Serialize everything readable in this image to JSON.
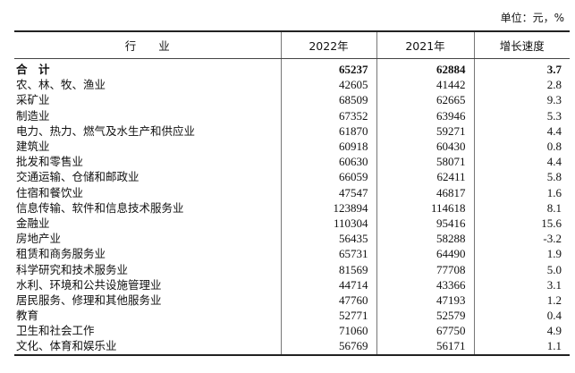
{
  "unit": "单位：元，%",
  "headers": [
    "行　　业",
    "2022年",
    "2021年",
    "增长速度"
  ],
  "rows": [
    [
      "合　计",
      "65237",
      "62884",
      "3.7"
    ],
    [
      "农、林、牧、渔业",
      "42605",
      "41442",
      "2.8"
    ],
    [
      "采矿业",
      "68509",
      "62665",
      "9.3"
    ],
    [
      "制造业",
      "67352",
      "63946",
      "5.3"
    ],
    [
      "电力、热力、燃气及水生产和供应业",
      "61870",
      "59271",
      "4.4"
    ],
    [
      "建筑业",
      "60918",
      "60430",
      "0.8"
    ],
    [
      "批发和零售业",
      "60630",
      "58071",
      "4.4"
    ],
    [
      "交通运输、仓储和邮政业",
      "66059",
      "62411",
      "5.8"
    ],
    [
      "住宿和餐饮业",
      "47547",
      "46817",
      "1.6"
    ],
    [
      "信息传输、软件和信息技术服务业",
      "123894",
      "114618",
      "8.1"
    ],
    [
      "金融业",
      "110304",
      "95416",
      "15.6"
    ],
    [
      "房地产业",
      "56435",
      "58288",
      "-3.2"
    ],
    [
      "租赁和商务服务业",
      "65731",
      "64490",
      "1.9"
    ],
    [
      "科学研究和技术服务业",
      "81569",
      "77708",
      "5.0"
    ],
    [
      "水利、环境和公共设施管理业",
      "44714",
      "43366",
      "3.1"
    ],
    [
      "居民服务、修理和其他服务业",
      "47760",
      "47193",
      "1.2"
    ],
    [
      "教育",
      "52771",
      "52579",
      "0.4"
    ],
    [
      "卫生和社会工作",
      "71060",
      "67750",
      "4.9"
    ],
    [
      "文化、体育和娱乐业",
      "56769",
      "56171",
      "1.1"
    ]
  ]
}
